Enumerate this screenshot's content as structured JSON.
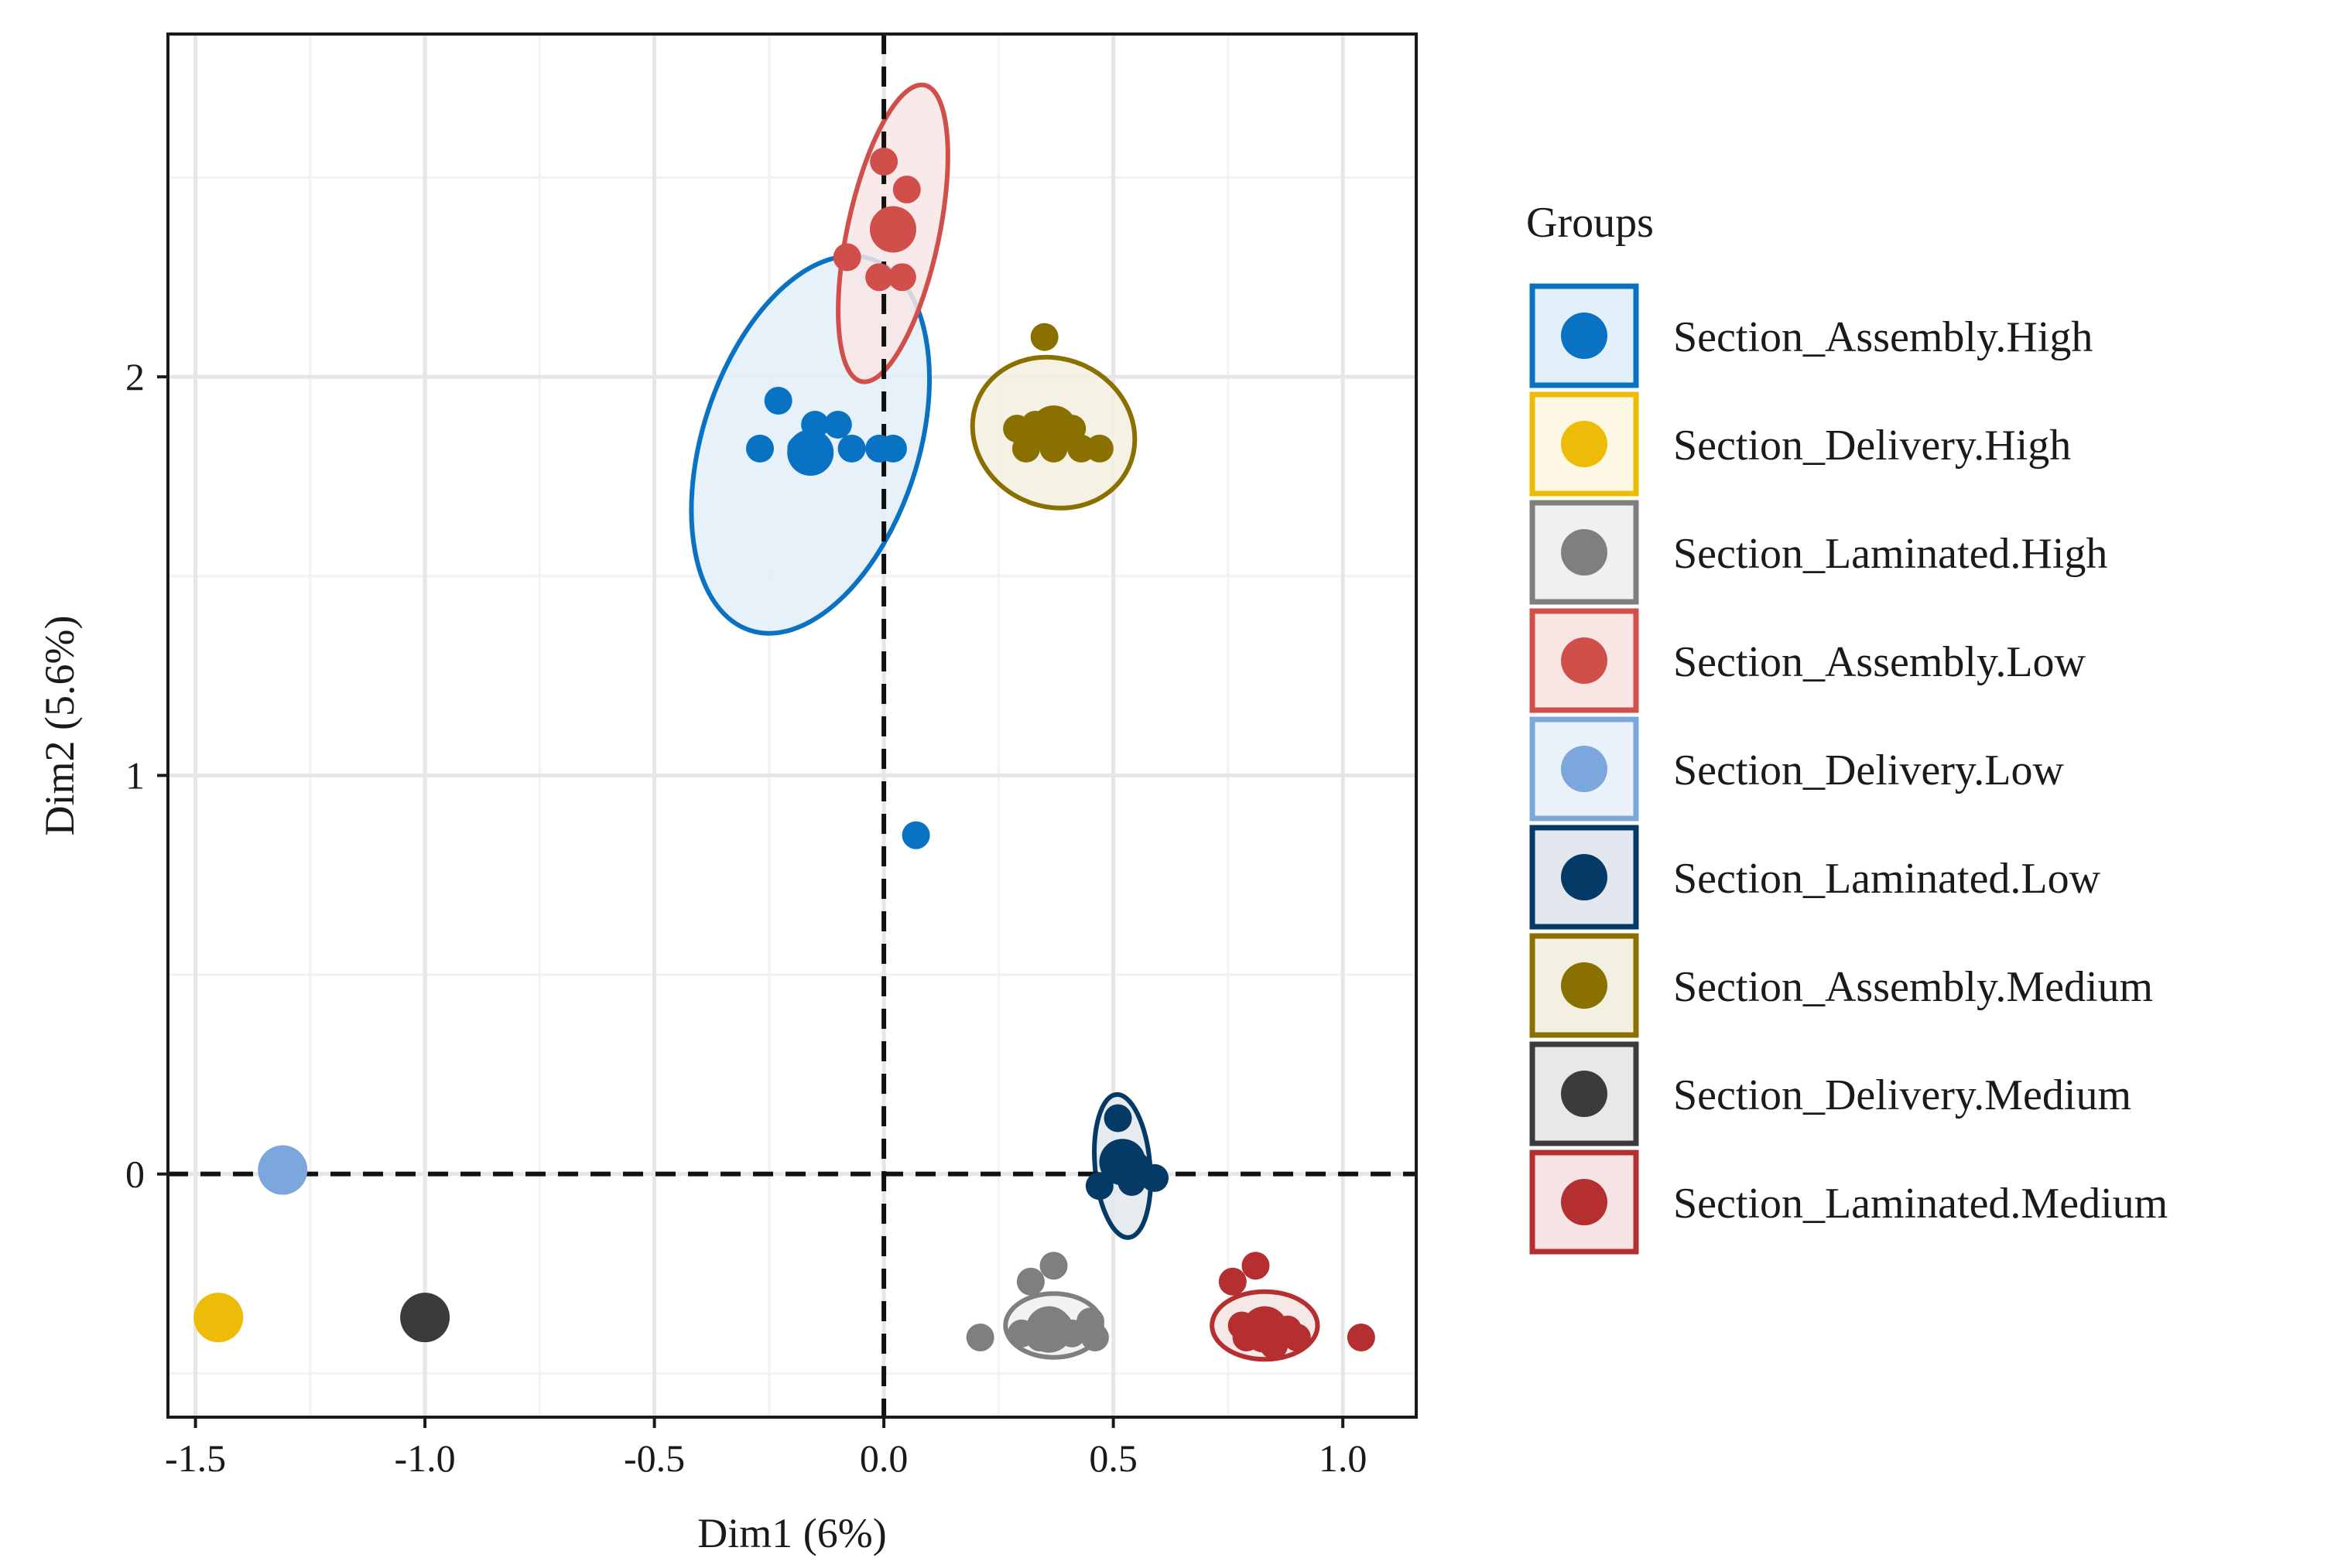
{
  "chart_data": {
    "type": "scatter",
    "xlabel": "Dim1 (6%)",
    "ylabel": "Dim2 (5.6%)",
    "xlim": [
      -1.56,
      1.16
    ],
    "ylim": [
      -0.61,
      2.86
    ],
    "x_ticks": [
      -1.5,
      -1.0,
      -0.5,
      0.0,
      0.5,
      1.0
    ],
    "x_tick_labels": [
      "-1.5",
      "-1.0",
      "-0.5",
      "0.0",
      "0.5",
      "1.0"
    ],
    "y_ticks": [
      0,
      1,
      2
    ],
    "y_tick_labels": [
      "0",
      "1",
      "2"
    ],
    "reference_lines": {
      "x": 0,
      "y": 0,
      "style": "dashed"
    },
    "grid": true,
    "legend": {
      "title": "Groups",
      "position": "right"
    },
    "series": [
      {
        "name": "Section_Assembly.High",
        "color": "#0a72c2",
        "fill": "#e3eff9",
        "points": [
          [
            -0.23,
            1.94
          ],
          [
            -0.27,
            1.82
          ],
          [
            -0.15,
            1.88
          ],
          [
            -0.1,
            1.88
          ],
          [
            -0.18,
            1.82
          ],
          [
            -0.07,
            1.82
          ],
          [
            -0.01,
            1.82
          ],
          [
            0.02,
            1.82
          ],
          [
            0.07,
            0.85
          ]
        ],
        "mean": [
          -0.16,
          1.81
        ],
        "ellipse": {
          "center": [
            -0.16,
            1.83
          ],
          "rx": 0.235,
          "ry": 0.49,
          "angle": 18
        }
      },
      {
        "name": "Section_Delivery.High",
        "color": "#eebc08",
        "fill": "#fdf8e3",
        "points": [],
        "mean": [
          -1.45,
          -0.36
        ],
        "ellipse": null
      },
      {
        "name": "Section_Laminated.High",
        "color": "#7f7f7f",
        "fill": "#f0f0f0",
        "points": [
          [
            0.37,
            -0.23
          ],
          [
            0.32,
            -0.27
          ],
          [
            0.3,
            -0.4
          ],
          [
            0.34,
            -0.41
          ],
          [
            0.41,
            -0.4
          ],
          [
            0.45,
            -0.37
          ],
          [
            0.46,
            -0.41
          ],
          [
            0.21,
            -0.41
          ],
          [
            0.38,
            -0.38
          ]
        ],
        "mean": [
          0.36,
          -0.39
        ],
        "ellipse": {
          "center": [
            0.37,
            -0.38
          ],
          "rx": 0.105,
          "ry": 0.08,
          "angle": 0
        }
      },
      {
        "name": "Section_Assembly.Low",
        "color": "#d04f4a",
        "fill": "#f8e6e5",
        "points": [
          [
            0.0,
            2.54
          ],
          [
            0.05,
            2.47
          ],
          [
            -0.08,
            2.3
          ],
          [
            -0.01,
            2.25
          ],
          [
            0.04,
            2.25
          ],
          [
            0.03,
            2.37
          ]
        ],
        "mean": [
          0.02,
          2.37
        ],
        "ellipse": {
          "center": [
            0.02,
            2.36
          ],
          "rx": 0.1,
          "ry": 0.38,
          "angle": 12
        }
      },
      {
        "name": "Section_Delivery.Low",
        "color": "#7ba7dd",
        "fill": "#ebf1fa",
        "points": [],
        "mean": [
          -1.31,
          0.01
        ],
        "ellipse": null
      },
      {
        "name": "Section_Laminated.Low",
        "color": "#063a66",
        "fill": "#e2e7ed",
        "points": [
          [
            0.51,
            0.14
          ],
          [
            0.47,
            -0.03
          ],
          [
            0.59,
            -0.01
          ],
          [
            0.54,
            -0.02
          ],
          [
            0.55,
            0.02
          ],
          [
            0.51,
            0.05
          ]
        ],
        "mean": [
          0.52,
          0.03
        ],
        "ellipse": {
          "center": [
            0.52,
            0.02
          ],
          "rx": 0.06,
          "ry": 0.18,
          "angle": -5
        }
      },
      {
        "name": "Section_Assembly.Medium",
        "color": "#8a7000",
        "fill": "#f3f0e1",
        "points": [
          [
            0.35,
            2.1
          ],
          [
            0.29,
            1.87
          ],
          [
            0.31,
            1.82
          ],
          [
            0.43,
            1.82
          ],
          [
            0.47,
            1.82
          ],
          [
            0.41,
            1.87
          ],
          [
            0.33,
            1.88
          ],
          [
            0.37,
            1.82
          ]
        ],
        "mean": [
          0.37,
          1.87
        ],
        "ellipse": {
          "center": [
            0.37,
            1.86
          ],
          "rx": 0.18,
          "ry": 0.185,
          "angle": 25
        }
      },
      {
        "name": "Section_Delivery.Medium",
        "color": "#3b3b3b",
        "fill": "#e8e8e8",
        "points": [],
        "mean": [
          -1.0,
          -0.36
        ],
        "ellipse": null
      },
      {
        "name": "Section_Laminated.Medium",
        "color": "#b52f30",
        "fill": "#f6e4e4",
        "points": [
          [
            0.81,
            -0.23
          ],
          [
            0.76,
            -0.27
          ],
          [
            0.78,
            -0.38
          ],
          [
            0.88,
            -0.39
          ],
          [
            0.9,
            -0.41
          ],
          [
            0.85,
            -0.43
          ],
          [
            1.04,
            -0.41
          ],
          [
            0.79,
            -0.41
          ]
        ],
        "mean": [
          0.83,
          -0.39
        ],
        "ellipse": {
          "center": [
            0.83,
            -0.38
          ],
          "rx": 0.115,
          "ry": 0.085,
          "angle": 0
        }
      }
    ]
  }
}
